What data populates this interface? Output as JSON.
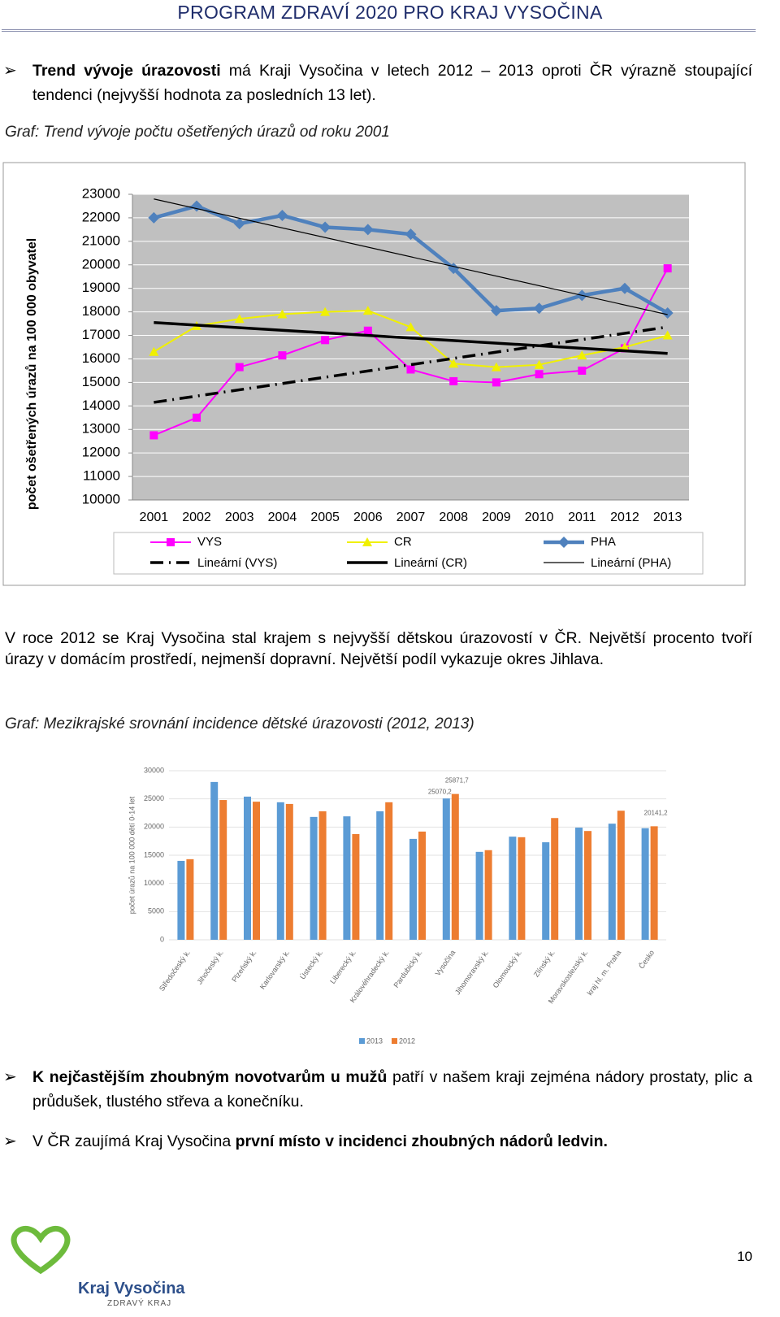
{
  "header": {
    "title": "PROGRAM ZDRAVÍ 2020 PRO KRAJ VYSOČINA"
  },
  "intro_bullet": [
    {
      "text": "Trend vývoje úrazovosti",
      "bold": true
    },
    {
      "text": " má Kraji Vysočina v letech 2012 – 2013 oproti ČR výrazně stoupající tendenci (nejvyšší hodnota za posledních 13 let).",
      "bold": false
    }
  ],
  "captions": [
    "Graf: Trend vývoje počtu ošetřených úrazů od roku 2001",
    "Graf: Mezikrajské srovnání incidence dětské úrazovosti (2012, 2013)"
  ],
  "paragraph": "V roce 2012 se Kraj Vysočina stal krajem s nejvyšší dětskou úrazovostí v ČR. Největší procento tvoří úrazy v domácím prostředí, nejmenší dopravní. Největší podíl vykazuje okres Jihlava.",
  "bottom_bullets": [
    [
      {
        "text": "K nejčastějším zhoubným novotvarům u mužů",
        "bold": true
      },
      {
        "text": " patří v našem kraji zejména nádory prostaty, plic a průdušek, tlustého střeva a konečníku.",
        "bold": false
      }
    ],
    [
      {
        "text": "V ČR zaujímá Kraj Vysočina ",
        "bold": false
      },
      {
        "text": "první místo v incidenci zhoubných nádorů ledvin.",
        "bold": true
      }
    ]
  ],
  "footer": {
    "page_number": "10",
    "logo_name": "Kraj Vysočina",
    "logo_tagline": "ZDRAVÝ KRAJ"
  },
  "chart_data": [
    {
      "type": "line",
      "y_label": "počet ošetřených úrazů na 100 000 obyvatel",
      "categories": [
        "2001",
        "2002",
        "2003",
        "2004",
        "2005",
        "2006",
        "2007",
        "2008",
        "2009",
        "2010",
        "2011",
        "2012",
        "2013"
      ],
      "ylim": [
        10000,
        23000
      ],
      "yticks": [
        10000,
        11000,
        12000,
        13000,
        14000,
        15000,
        16000,
        17000,
        18000,
        19000,
        20000,
        21000,
        22000,
        23000
      ],
      "grid": true,
      "series": [
        {
          "name": "VYS",
          "color": "#ff00ff",
          "marker": "square",
          "width": 2,
          "values": [
            12750,
            13500,
            15650,
            16150,
            16800,
            17200,
            15550,
            15050,
            15000,
            15350,
            15500,
            16450,
            19850
          ],
          "trend": {
            "name": "Lineární (VYS)",
            "width": 3.5,
            "dash": "dashdot"
          }
        },
        {
          "name": "CR",
          "color": "#f0f000",
          "marker": "triangle",
          "width": 2,
          "values": [
            16300,
            17400,
            17700,
            17900,
            18000,
            18050,
            17350,
            15800,
            15650,
            15750,
            16150,
            16500,
            17000
          ],
          "trend": {
            "name": "Lineární (CR)",
            "width": 3.5,
            "dash": "solid"
          }
        },
        {
          "name": "PHA",
          "color": "#4f81bd",
          "marker": "diamond",
          "width": 4.5,
          "values": [
            22000,
            22500,
            21750,
            22100,
            21600,
            21500,
            21300,
            19850,
            18050,
            18150,
            18700,
            19000,
            17950
          ],
          "trend": {
            "name": "Lineární (PHA)",
            "width": 1.2,
            "dash": "solid"
          }
        }
      ]
    },
    {
      "type": "bar",
      "y_label": "počet úrazů na 100 000 dětí 0-14 let",
      "categories": [
        "Středočeský k.",
        "Jihočeský k.",
        "Plzeňský k.",
        "Karlovarský k.",
        "Ústecký k.",
        "Liberecký k.",
        "Královéhradecký k.",
        "Pardubický k.",
        "Vysočina",
        "Jihomoravský k.",
        "Olomoucký k.",
        "Zlínský k.",
        "Moravskoslezský k.",
        "kraj hl. m. Praha",
        "Česko"
      ],
      "ylim": [
        0,
        30000
      ],
      "yticks": [
        0,
        5000,
        10000,
        15000,
        20000,
        25000,
        30000
      ],
      "grid": true,
      "series": [
        {
          "name": "2013",
          "color": "#5b9bd5",
          "values": [
            14000,
            28000,
            25400,
            24400,
            21800,
            21900,
            22800,
            17900,
            25070.2,
            15600,
            18300,
            17300,
            19900,
            20600,
            19800
          ],
          "value_labels": [
            null,
            null,
            null,
            null,
            null,
            null,
            null,
            null,
            "25070,2",
            null,
            null,
            null,
            null,
            null,
            null
          ]
        },
        {
          "name": "2012",
          "color": "#ed7d31",
          "values": [
            14300,
            24800,
            24500,
            24100,
            22800,
            18750,
            24400,
            19200,
            25871.7,
            15900,
            18200,
            21600,
            19300,
            22900,
            20141.2
          ],
          "value_labels": [
            null,
            null,
            null,
            null,
            null,
            null,
            null,
            null,
            "25871,7",
            null,
            null,
            null,
            null,
            null,
            "20141,2"
          ]
        }
      ]
    }
  ]
}
